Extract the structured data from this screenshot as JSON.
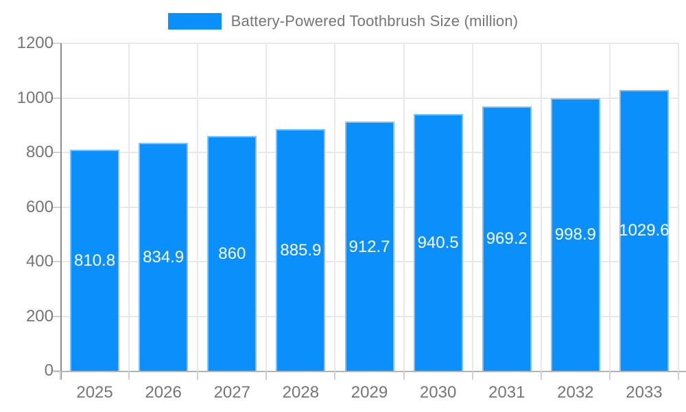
{
  "legend": {
    "label": "Battery-Powered Toothbrush Size (million)"
  },
  "colors": {
    "bar_fill": "#0b90fb",
    "bar_border": "#85c1f4",
    "grid": "#e8e8e8",
    "y_axis_line": "#8c8c8c",
    "x_axis_line": "#b3b3b3",
    "tick": "#cfcfcf",
    "axis_text": "#757575",
    "bar_label_text": "#ffffff"
  },
  "chart_data": {
    "type": "bar",
    "title": "Battery-Powered Toothbrush Size (million)",
    "categories": [
      "2025",
      "2026",
      "2027",
      "2028",
      "2029",
      "2030",
      "2031",
      "2032",
      "2033"
    ],
    "values": [
      810.8,
      834.9,
      860,
      885.9,
      912.7,
      940.5,
      969.2,
      998.9,
      1029.6
    ],
    "value_labels": [
      "810.8",
      "834.9",
      "860",
      "885.9",
      "912.7",
      "940.5",
      "969.2",
      "998.9",
      "1029.6"
    ],
    "xlabel": "",
    "ylabel": "",
    "ylim": [
      0,
      1200
    ],
    "ytick_step": 200,
    "yticks": [
      0,
      200,
      400,
      600,
      800,
      1000,
      1200
    ],
    "grid": "on",
    "legend_position": "top-center",
    "bar_label_position": "inside-center"
  }
}
